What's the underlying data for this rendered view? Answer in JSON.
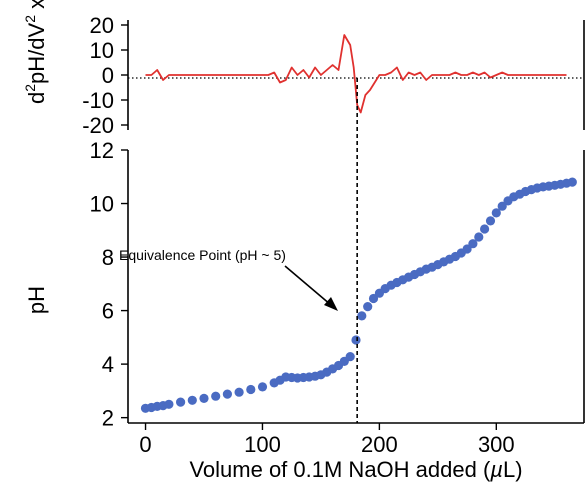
{
  "chart_data": [
    {
      "type": "line",
      "x": [
        0,
        5,
        10,
        15,
        20,
        25,
        30,
        35,
        40,
        45,
        50,
        55,
        60,
        65,
        70,
        75,
        80,
        85,
        90,
        95,
        100,
        105,
        110,
        115,
        120,
        125,
        130,
        135,
        140,
        145,
        150,
        155,
        160,
        165,
        170,
        175,
        178,
        181,
        184,
        188,
        192,
        196,
        200,
        205,
        210,
        215,
        220,
        225,
        230,
        235,
        240,
        245,
        250,
        255,
        260,
        265,
        270,
        275,
        280,
        285,
        290,
        295,
        300,
        305,
        310,
        315,
        320,
        325,
        330,
        340,
        350,
        360
      ],
      "series": [
        {
          "color": "#e0312f",
          "values": [
            0,
            0,
            2,
            -2,
            0,
            0,
            0,
            0,
            0,
            0,
            0,
            0,
            0,
            0,
            0,
            0,
            0,
            0,
            0,
            0,
            0,
            0,
            1,
            -3,
            -2,
            3,
            0,
            2,
            -1,
            3,
            0,
            2,
            4,
            2,
            16,
            12,
            3,
            -12,
            -15,
            -8,
            -6,
            -3,
            0,
            0,
            1,
            3,
            -2,
            1,
            0,
            1,
            -2,
            0,
            0,
            0,
            0,
            1,
            0,
            0,
            1,
            0,
            1,
            -1,
            0,
            1,
            0,
            0,
            0,
            0,
            0,
            0,
            0,
            0
          ]
        }
      ],
      "ylabel_parts": [
        "d",
        "2",
        "pH/dV",
        "2",
        " x10",
        "-3"
      ],
      "ylim": [
        -20,
        20
      ],
      "yticks": [
        "20",
        "10",
        "0",
        "-10",
        "-20"
      ],
      "zero_line": "dotted"
    },
    {
      "type": "scatter",
      "x": [
        0,
        5,
        10,
        15,
        20,
        30,
        40,
        50,
        60,
        70,
        80,
        90,
        100,
        110,
        115,
        120,
        125,
        130,
        135,
        140,
        145,
        150,
        155,
        160,
        165,
        170,
        175,
        180,
        185,
        190,
        195,
        200,
        205,
        210,
        215,
        220,
        225,
        230,
        235,
        240,
        245,
        250,
        255,
        260,
        265,
        270,
        275,
        280,
        285,
        290,
        295,
        300,
        305,
        310,
        315,
        320,
        325,
        330,
        335,
        340,
        345,
        350,
        355,
        360,
        365
      ],
      "series": [
        {
          "color": "#4a6bc2",
          "values": [
            2.35,
            2.38,
            2.42,
            2.45,
            2.5,
            2.58,
            2.65,
            2.72,
            2.8,
            2.88,
            2.95,
            3.05,
            3.15,
            3.3,
            3.4,
            3.52,
            3.5,
            3.48,
            3.5,
            3.52,
            3.55,
            3.6,
            3.7,
            3.82,
            3.95,
            4.1,
            4.28,
            4.9,
            5.8,
            6.15,
            6.45,
            6.65,
            6.82,
            6.95,
            7.05,
            7.15,
            7.25,
            7.35,
            7.45,
            7.55,
            7.62,
            7.72,
            7.82,
            7.92,
            8.02,
            8.15,
            8.3,
            8.5,
            8.75,
            9.05,
            9.35,
            9.65,
            9.9,
            10.1,
            10.25,
            10.35,
            10.45,
            10.52,
            10.58,
            10.62,
            10.65,
            10.68,
            10.72,
            10.76,
            10.8
          ]
        }
      ],
      "xlabel_parts": [
        "Volume of 0.1M NaOH added (",
        "µ",
        "L)"
      ],
      "ylabel": "pH",
      "xlim": [
        -15,
        375
      ],
      "ylim": [
        1.8,
        12
      ],
      "xticks": [
        "0",
        "100",
        "200",
        "300"
      ],
      "yticks": [
        "2",
        "4",
        "6",
        "8",
        "10",
        "12"
      ],
      "annotation": "Equivalence Point (pH ~ 5)",
      "equivalence_x": 181,
      "vertical_line": "dashed"
    }
  ]
}
